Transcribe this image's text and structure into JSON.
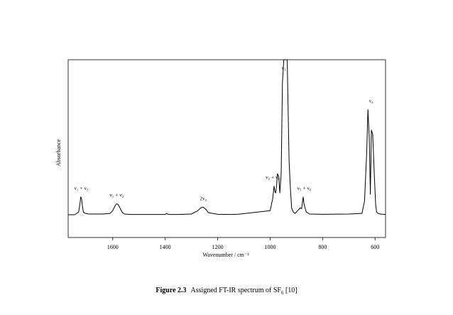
{
  "chart_data": {
    "type": "line",
    "xlabel": "Wavenumber / cm⁻¹",
    "ylabel": "Absorbance",
    "xlim": [
      1770,
      560
    ],
    "ylim": [
      0,
      1
    ],
    "x_reversed": true,
    "x_ticks": [
      1600,
      1400,
      1200,
      1000,
      800,
      600
    ],
    "y_ticks": [],
    "grid": false,
    "legend": "none",
    "annotations": [
      {
        "text": "ν₁ + ν₃",
        "x": 1720
      },
      {
        "text": "ν₁ + ν₂",
        "x": 1585
      },
      {
        "text": "2ν₂",
        "x": 1255
      },
      {
        "text": "ν₂ + ν₆",
        "x": 990
      },
      {
        "text": "ν₃",
        "x": 948
      },
      {
        "text": "ν₅ + ν₆",
        "x": 870
      },
      {
        "text": "ν₄",
        "x": 615
      }
    ],
    "series": [
      {
        "values_x": [
          1770,
          1745,
          1730,
          1725,
          1722,
          1719,
          1716,
          1712,
          1705,
          1690,
          1640,
          1610,
          1600,
          1595,
          1590,
          1585,
          1580,
          1575,
          1570,
          1563,
          1555,
          1530,
          1480,
          1400,
          1395,
          1390,
          1380,
          1350,
          1300,
          1275,
          1265,
          1255,
          1245,
          1235,
          1200,
          1150,
          1120,
          1000,
          990,
          985,
          982,
          979,
          976,
          972,
          967,
          963,
          958,
          953,
          948,
          945,
          940,
          935,
          928,
          923,
          918,
          912,
          905,
          895,
          885,
          880,
          877,
          874,
          871,
          867,
          862,
          850,
          800,
          700,
          650,
          640,
          632,
          627,
          622,
          618,
          614,
          609,
          603,
          598,
          594,
          588,
          580,
          570,
          560
        ],
        "values_y": [
          0.0,
          0.0,
          0.02,
          0.08,
          0.13,
          0.12,
          0.07,
          0.02,
          0.01,
          0.005,
          0.005,
          0.01,
          0.03,
          0.05,
          0.07,
          0.08,
          0.075,
          0.06,
          0.04,
          0.015,
          0.005,
          0.002,
          0.002,
          0.002,
          0.01,
          0.004,
          0.002,
          0.002,
          0.005,
          0.03,
          0.05,
          0.055,
          0.04,
          0.015,
          0.003,
          0.002,
          0.004,
          0.03,
          0.12,
          0.21,
          0.17,
          0.16,
          0.2,
          0.3,
          0.28,
          0.16,
          0.3,
          0.97,
          1.2,
          1.2,
          1.2,
          1.2,
          0.4,
          0.2,
          0.05,
          0.02,
          0.01,
          0.03,
          0.05,
          0.045,
          0.09,
          0.13,
          0.08,
          0.05,
          0.02,
          0.005,
          0.003,
          0.005,
          0.01,
          0.1,
          0.45,
          0.77,
          0.56,
          0.15,
          0.62,
          0.59,
          0.3,
          0.08,
          0.02,
          0.01,
          0.005,
          0.003,
          0.002
        ]
      }
    ]
  },
  "caption": {
    "number": "Figure 2.3",
    "text_before": "Assigned FT-IR spectrum of SF",
    "subscript": "6",
    "text_after": " [10]"
  }
}
